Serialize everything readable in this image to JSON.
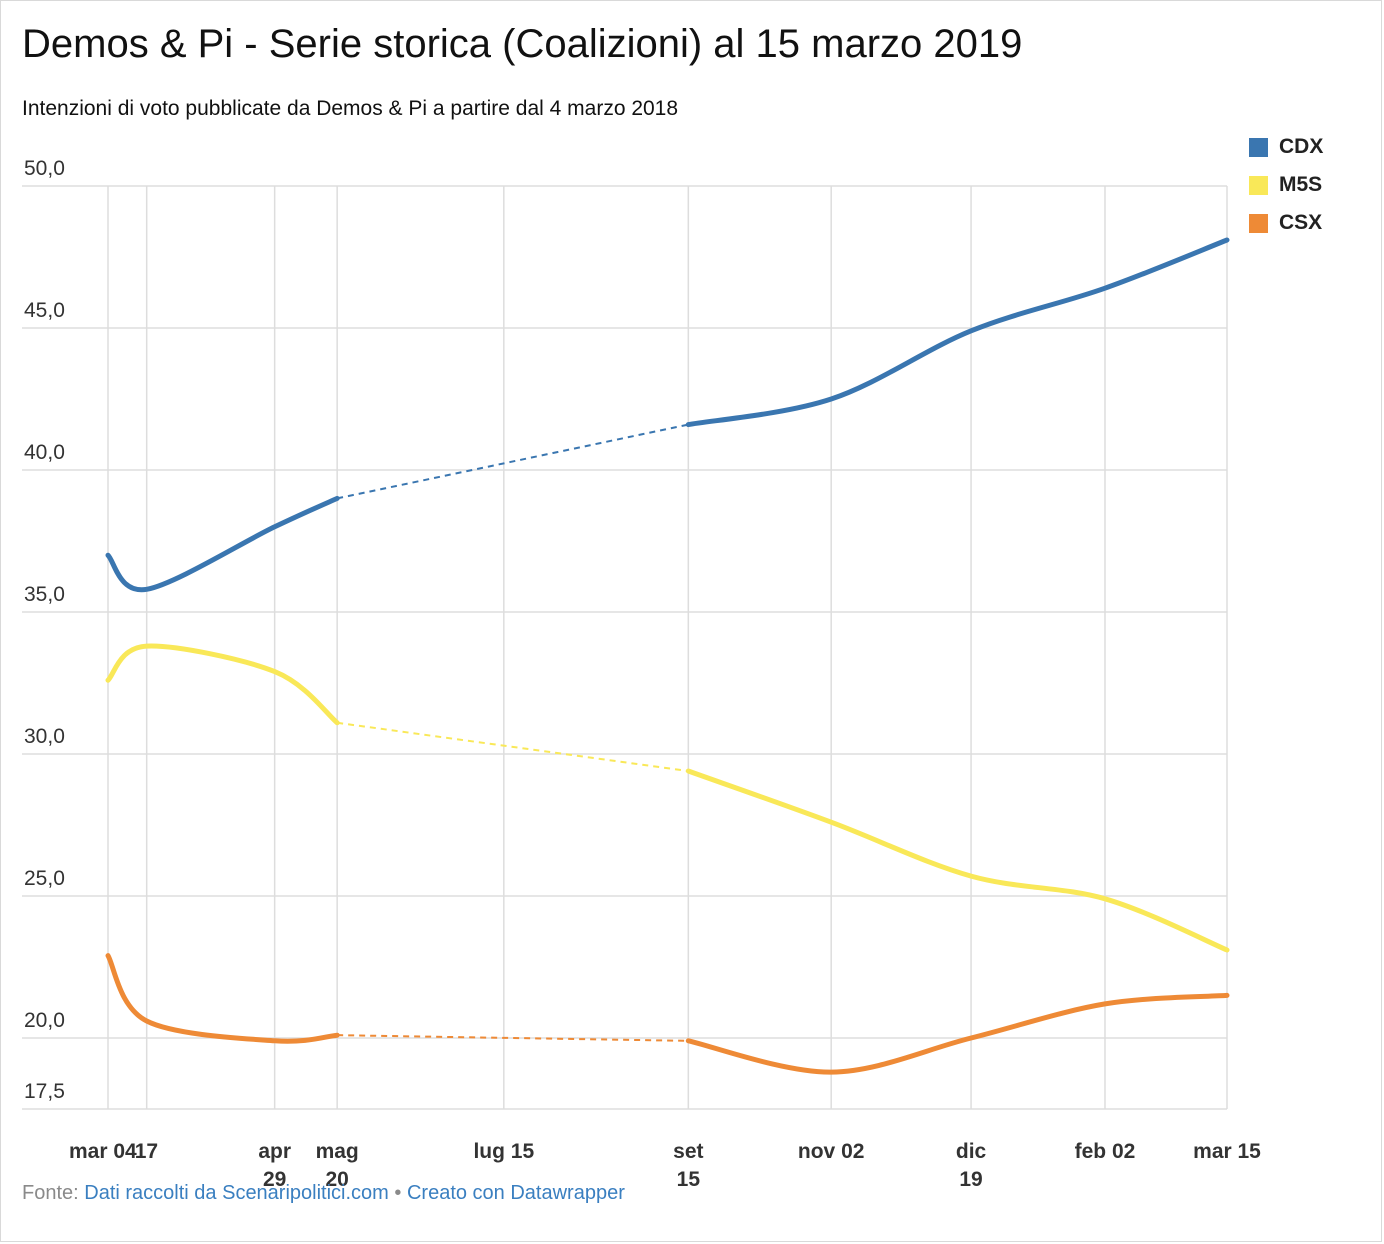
{
  "title": "Demos & Pi - Serie storica (Coalizioni) al 15 marzo 2019",
  "subtitle": "Intenzioni di voto pubblicate da Demos & Pi a partire dal 4 marzo 2018",
  "footer": {
    "prefix": "Fonte:",
    "source_link": "Dati raccolti da Scenaripolitici.com",
    "separator": "•",
    "tool_link": "Creato con Datawrapper"
  },
  "chart_data": {
    "type": "line",
    "y_ticks": [
      {
        "value": 50,
        "label": "50,0"
      },
      {
        "value": 45,
        "label": "45,0"
      },
      {
        "value": 40,
        "label": "40,0"
      },
      {
        "value": 35,
        "label": "35,0"
      },
      {
        "value": 30,
        "label": "30,0"
      },
      {
        "value": 25,
        "label": "25,0"
      },
      {
        "value": 20,
        "label": "20,0"
      },
      {
        "value": 17.5,
        "label": "17,5"
      }
    ],
    "ylim": [
      17.5,
      50
    ],
    "x_ticks": [
      {
        "date": "2018-03-04",
        "line1": "mar 04",
        "line2": ""
      },
      {
        "date": "2018-03-17",
        "line1": "17",
        "line2": ""
      },
      {
        "date": "2018-04-29",
        "line1": "apr",
        "line2": "29"
      },
      {
        "date": "2018-05-20",
        "line1": "mag",
        "line2": "20"
      },
      {
        "date": "2018-07-15",
        "line1": "lug 15",
        "line2": ""
      },
      {
        "date": "2018-09-15",
        "line1": "set",
        "line2": "15"
      },
      {
        "date": "2018-11-02",
        "line1": "nov 02",
        "line2": ""
      },
      {
        "date": "2018-12-19",
        "line1": "dic",
        "line2": "19"
      },
      {
        "date": "2019-02-02",
        "line1": "feb 02",
        "line2": ""
      },
      {
        "date": "2019-03-15",
        "line1": "mar 15",
        "line2": ""
      }
    ],
    "xlim": [
      "2018-03-04",
      "2019-03-15"
    ],
    "gap": {
      "from": "2018-05-20",
      "to": "2018-09-15",
      "style": "dashed"
    },
    "legend_position": "top-right",
    "series": [
      {
        "name": "CDX",
        "color": "#3a76b0",
        "points": [
          {
            "date": "2018-03-04",
            "value": 37.0
          },
          {
            "date": "2018-03-17",
            "value": 35.8
          },
          {
            "date": "2018-04-29",
            "value": 38.0
          },
          {
            "date": "2018-05-20",
            "value": 39.0
          },
          {
            "date": "2018-09-15",
            "value": 41.6
          },
          {
            "date": "2018-11-02",
            "value": 42.5
          },
          {
            "date": "2018-12-19",
            "value": 44.9
          },
          {
            "date": "2019-02-02",
            "value": 46.4
          },
          {
            "date": "2019-03-15",
            "value": 48.1
          }
        ]
      },
      {
        "name": "M5S",
        "color": "#f9e858",
        "points": [
          {
            "date": "2018-03-04",
            "value": 32.6
          },
          {
            "date": "2018-03-17",
            "value": 33.8
          },
          {
            "date": "2018-04-29",
            "value": 32.9
          },
          {
            "date": "2018-05-20",
            "value": 31.1
          },
          {
            "date": "2018-09-15",
            "value": 29.4
          },
          {
            "date": "2018-11-02",
            "value": 27.6
          },
          {
            "date": "2018-12-19",
            "value": 25.7
          },
          {
            "date": "2019-02-02",
            "value": 24.9
          },
          {
            "date": "2019-03-15",
            "value": 23.1
          }
        ]
      },
      {
        "name": "CSX",
        "color": "#ee8a36",
        "points": [
          {
            "date": "2018-03-04",
            "value": 22.9
          },
          {
            "date": "2018-03-17",
            "value": 20.6
          },
          {
            "date": "2018-04-29",
            "value": 19.9
          },
          {
            "date": "2018-05-20",
            "value": 20.1
          },
          {
            "date": "2018-09-15",
            "value": 19.9
          },
          {
            "date": "2018-11-02",
            "value": 18.8
          },
          {
            "date": "2018-12-19",
            "value": 20.0
          },
          {
            "date": "2019-02-02",
            "value": 21.2
          },
          {
            "date": "2019-03-15",
            "value": 21.5
          }
        ]
      }
    ]
  }
}
